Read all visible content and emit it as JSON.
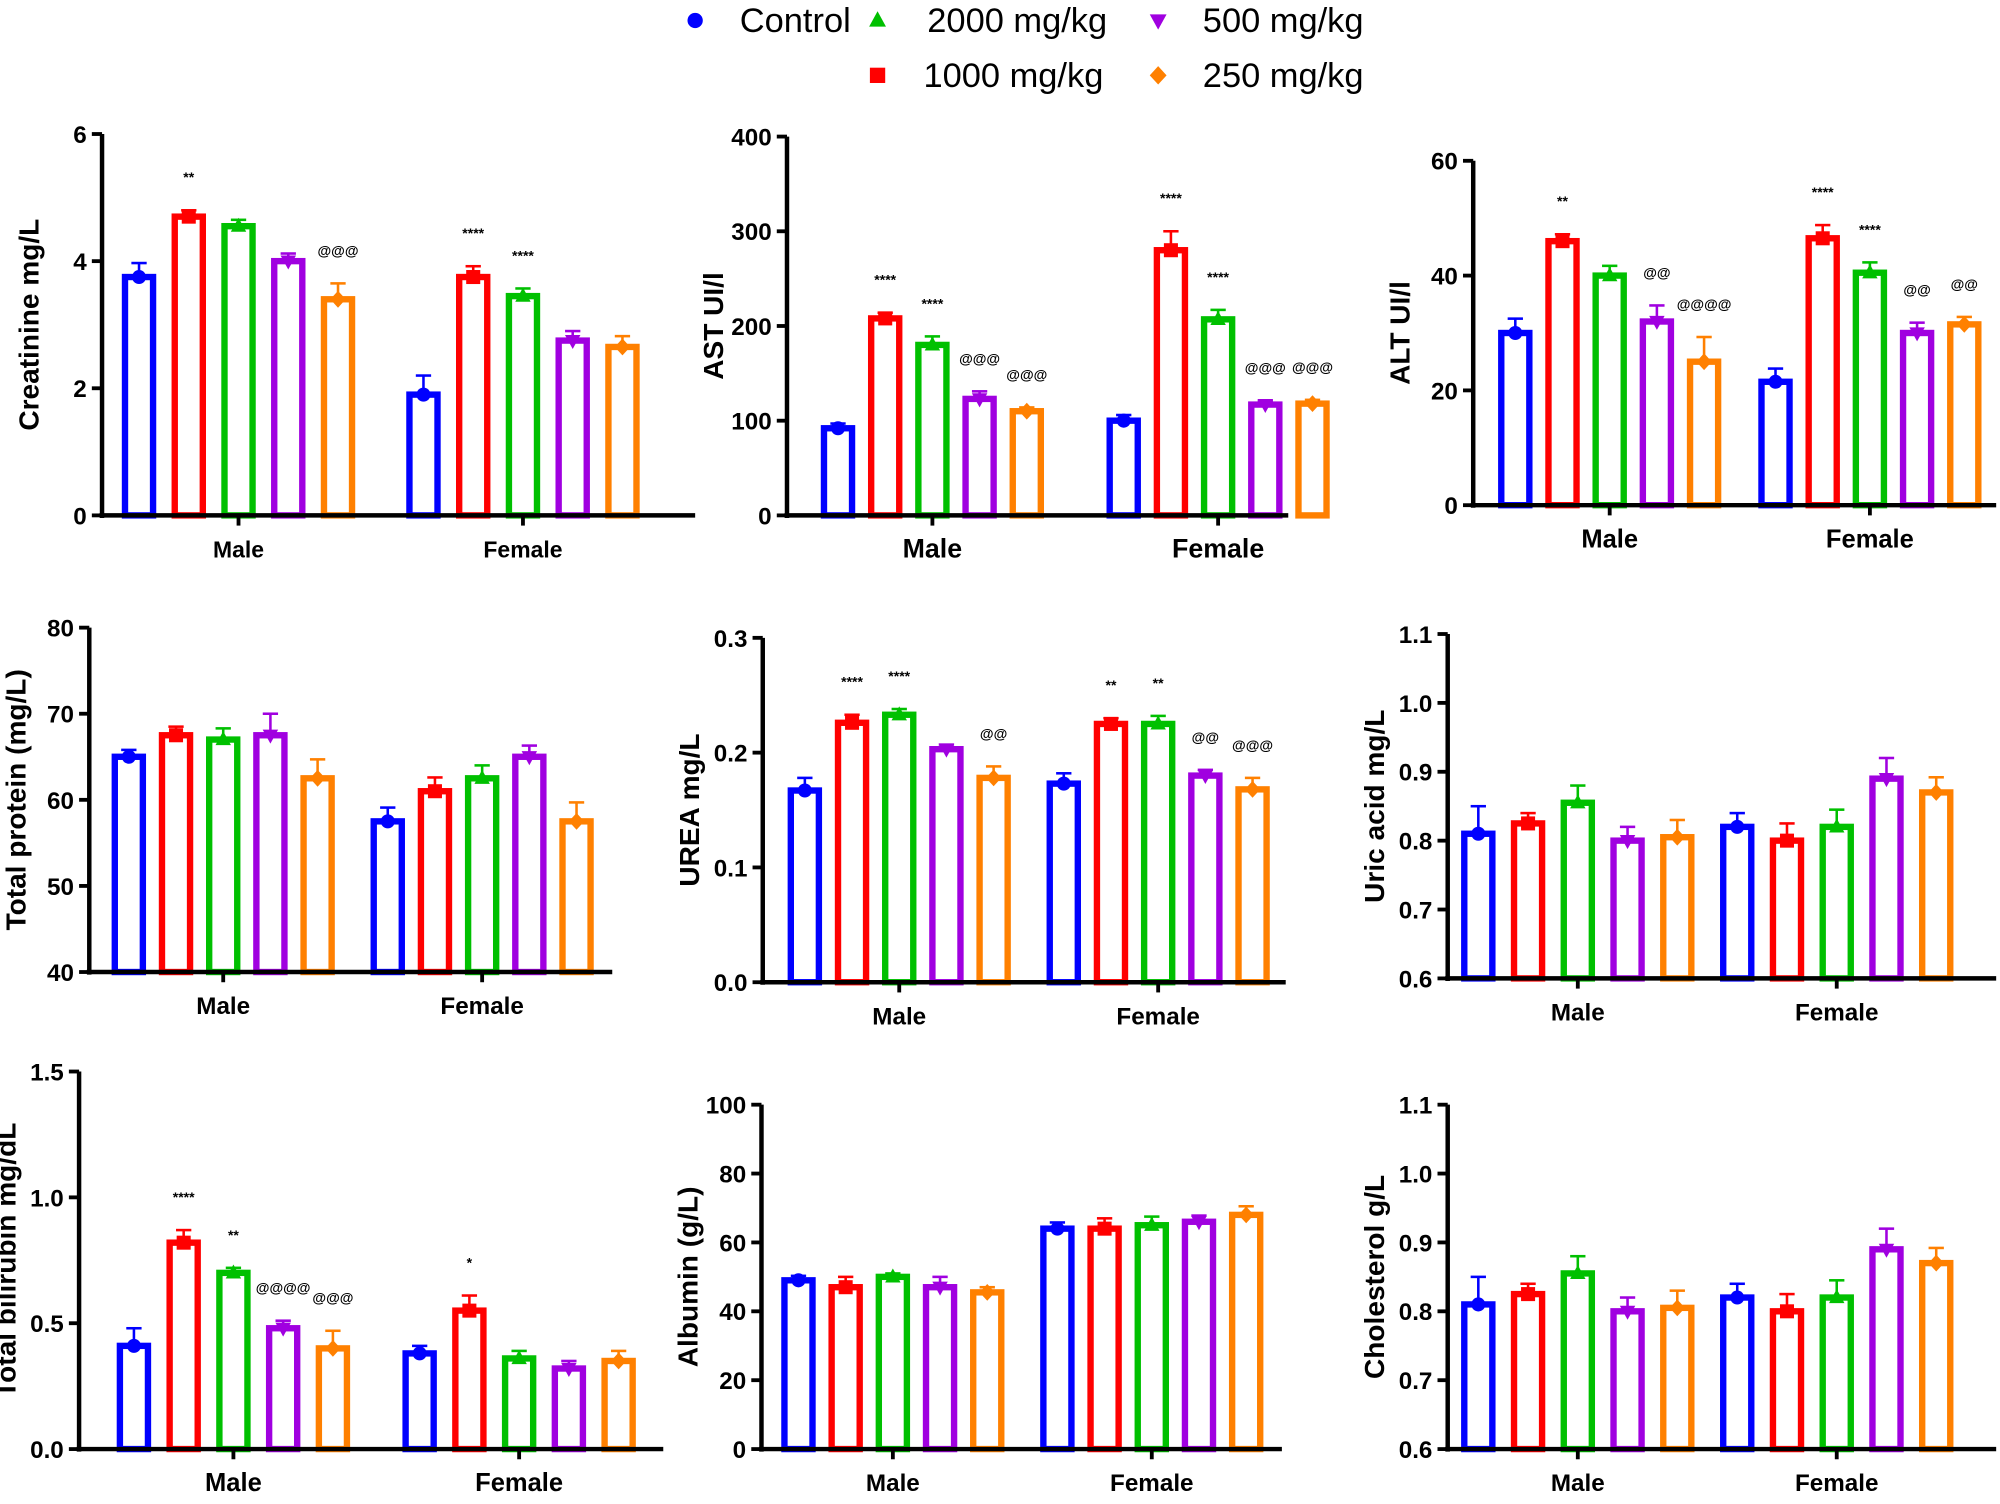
{
  "legend": [
    {
      "name": "Control",
      "color": "#0000ff",
      "marker": "circle"
    },
    {
      "name": "1000 mg/kg",
      "color": "#ff0000",
      "marker": "square"
    },
    {
      "name": "2000 mg/kg",
      "color": "#00c000",
      "marker": "triangle-up"
    },
    {
      "name": "500 mg/kg",
      "color": "#a000e0",
      "marker": "triangle-down"
    },
    {
      "name": "250 mg/kg",
      "color": "#ff8000",
      "marker": "diamond"
    }
  ],
  "chart_data": [
    {
      "type": "bar",
      "ylabel": "Creatinine mg/L",
      "categories": [
        "Male",
        "Female"
      ],
      "ylim": [
        0,
        6
      ],
      "yticks": [
        "0",
        "2",
        "4",
        "6"
      ],
      "series": [
        {
          "name": "Control",
          "values": [
            3.75,
            1.9
          ],
          "sem": [
            0.22,
            0.3
          ]
        },
        {
          "name": "1000 mg/kg",
          "values": [
            4.7,
            3.75
          ],
          "sem": [
            0.1,
            0.17
          ]
        },
        {
          "name": "2000 mg/kg",
          "values": [
            4.55,
            3.45
          ],
          "sem": [
            0.1,
            0.12
          ]
        },
        {
          "name": "500 mg/kg",
          "values": [
            4.0,
            2.75
          ],
          "sem": [
            0.12,
            0.15
          ]
        },
        {
          "name": "250 mg/kg",
          "values": [
            3.4,
            2.65
          ],
          "sem": [
            0.25,
            0.17
          ]
        }
      ],
      "annotations": [
        [
          "",
          "**",
          "",
          "",
          "@@@"
        ],
        [
          "",
          "****",
          "****",
          "",
          ""
        ]
      ]
    },
    {
      "type": "bar",
      "ylabel": "AST UI/l",
      "categories": [
        "Male",
        "Female"
      ],
      "ylim": [
        0,
        400
      ],
      "yticks": [
        "0",
        "100",
        "200",
        "300",
        "400"
      ],
      "series": [
        {
          "name": "Control",
          "values": [
            92,
            100
          ],
          "sem": [
            5,
            6
          ]
        },
        {
          "name": "1000 mg/kg",
          "values": [
            208,
            280
          ],
          "sem": [
            6,
            20
          ]
        },
        {
          "name": "2000 mg/kg",
          "values": [
            180,
            207
          ],
          "sem": [
            9,
            10
          ]
        },
        {
          "name": "500 mg/kg",
          "values": [
            123,
            117
          ],
          "sem": [
            8,
            4
          ]
        },
        {
          "name": "250 mg/kg",
          "values": [
            110,
            118
          ],
          "sem": [
            4,
            4
          ]
        }
      ],
      "annotations": [
        [
          "",
          "****",
          "****",
          "@@@",
          "@@@"
        ],
        [
          "",
          "****",
          "****",
          "@@@",
          "@@@"
        ]
      ]
    },
    {
      "type": "bar",
      "ylabel": "ALT UI/l",
      "categories": [
        "Male",
        "Female"
      ],
      "ylim": [
        0,
        60
      ],
      "yticks": [
        "0",
        "20",
        "40",
        "60"
      ],
      "series": [
        {
          "name": "Control",
          "values": [
            30,
            21.5
          ],
          "sem": [
            2.5,
            2.3
          ]
        },
        {
          "name": "1000 mg/kg",
          "values": [
            46,
            46.5
          ],
          "sem": [
            1.2,
            2.3
          ]
        },
        {
          "name": "2000 mg/kg",
          "values": [
            40,
            40.5
          ],
          "sem": [
            1.7,
            1.8
          ]
        },
        {
          "name": "500 mg/kg",
          "values": [
            32,
            30
          ],
          "sem": [
            2.8,
            1.8
          ]
        },
        {
          "name": "250 mg/kg",
          "values": [
            25,
            31.5
          ],
          "sem": [
            4.3,
            1.3
          ]
        }
      ],
      "annotations": [
        [
          "",
          "**",
          "",
          "@@",
          "@@@@"
        ],
        [
          "",
          "****",
          "****",
          "@@",
          "@@"
        ]
      ]
    },
    {
      "type": "bar",
      "ylabel": "Total protein (mg/L)",
      "categories": [
        "Male",
        "Female"
      ],
      "ylim": [
        40,
        80
      ],
      "yticks": [
        "40",
        "50",
        "60",
        "70",
        "80"
      ],
      "series": [
        {
          "name": "Control",
          "values": [
            65,
            57.5
          ],
          "sem": [
            0.8,
            1.6
          ]
        },
        {
          "name": "1000 mg/kg",
          "values": [
            67.5,
            61
          ],
          "sem": [
            1,
            1.6
          ]
        },
        {
          "name": "2000 mg/kg",
          "values": [
            67,
            62.5
          ],
          "sem": [
            1.3,
            1.5
          ]
        },
        {
          "name": "500 mg/kg",
          "values": [
            67.5,
            65
          ],
          "sem": [
            2.5,
            1.3
          ]
        },
        {
          "name": "250 mg/kg",
          "values": [
            62.5,
            57.5
          ],
          "sem": [
            2.2,
            2.2
          ]
        }
      ],
      "annotations": [
        [
          "",
          "",
          "",
          "",
          ""
        ],
        [
          "",
          "",
          "",
          "",
          ""
        ]
      ]
    },
    {
      "type": "bar",
      "ylabel": "UREA mg/L",
      "categories": [
        "Male",
        "Female"
      ],
      "ylim": [
        0,
        0.3
      ],
      "yticks": [
        "0.0",
        "0.1",
        "0.2",
        "0.3"
      ],
      "series": [
        {
          "name": "Control",
          "values": [
            0.167,
            0.173
          ],
          "sem": [
            0.011,
            0.009
          ]
        },
        {
          "name": "1000 mg/kg",
          "values": [
            0.226,
            0.225
          ],
          "sem": [
            0.007,
            0.005
          ]
        },
        {
          "name": "2000 mg/kg",
          "values": [
            0.233,
            0.225
          ],
          "sem": [
            0.005,
            0.007
          ]
        },
        {
          "name": "500 mg/kg",
          "values": [
            0.203,
            0.18
          ],
          "sem": [
            0.004,
            0.005
          ]
        },
        {
          "name": "250 mg/kg",
          "values": [
            0.178,
            0.168
          ],
          "sem": [
            0.01,
            0.01
          ]
        }
      ],
      "annotations": [
        [
          "",
          "****",
          "****",
          "",
          "@@"
        ],
        [
          "",
          "**",
          "**",
          "@@",
          "@@@"
        ]
      ]
    },
    {
      "type": "bar",
      "ylabel": "Uric acid mg/L",
      "categories": [
        "Male",
        "Female"
      ],
      "ylim": [
        0.6,
        1.1
      ],
      "yticks": [
        "0.6",
        "0.7",
        "0.8",
        "0.9",
        "1.0",
        "1.1"
      ],
      "series": [
        {
          "name": "Control",
          "values": [
            0.81,
            0.82
          ],
          "sem": [
            0.04,
            0.02
          ]
        },
        {
          "name": "1000 mg/kg",
          "values": [
            0.825,
            0.8
          ],
          "sem": [
            0.015,
            0.025
          ]
        },
        {
          "name": "2000 mg/kg",
          "values": [
            0.855,
            0.82
          ],
          "sem": [
            0.025,
            0.025
          ]
        },
        {
          "name": "500 mg/kg",
          "values": [
            0.8,
            0.89
          ],
          "sem": [
            0.02,
            0.03
          ]
        },
        {
          "name": "250 mg/kg",
          "values": [
            0.805,
            0.87
          ],
          "sem": [
            0.025,
            0.022
          ]
        }
      ],
      "annotations": [
        [
          "",
          "",
          "",
          "",
          ""
        ],
        [
          "",
          "",
          "",
          "",
          ""
        ]
      ]
    },
    {
      "type": "bar",
      "ylabel": "Total bilirubin mg/dL",
      "categories": [
        "Male",
        "Female"
      ],
      "ylim": [
        0,
        1.5
      ],
      "yticks": [
        "0.0",
        "0.5",
        "1.0",
        "1.5"
      ],
      "series": [
        {
          "name": "Control",
          "values": [
            0.41,
            0.38
          ],
          "sem": [
            0.07,
            0.03
          ]
        },
        {
          "name": "1000 mg/kg",
          "values": [
            0.82,
            0.55
          ],
          "sem": [
            0.05,
            0.06
          ]
        },
        {
          "name": "2000 mg/kg",
          "values": [
            0.7,
            0.36
          ],
          "sem": [
            0.02,
            0.03
          ]
        },
        {
          "name": "500 mg/kg",
          "values": [
            0.48,
            0.32
          ],
          "sem": [
            0.03,
            0.03
          ]
        },
        {
          "name": "250 mg/kg",
          "values": [
            0.4,
            0.35
          ],
          "sem": [
            0.07,
            0.04
          ]
        }
      ],
      "annotations": [
        [
          "",
          "****",
          "**",
          "@@@@",
          "@@@"
        ],
        [
          "",
          "*",
          "",
          "",
          ""
        ]
      ]
    },
    {
      "type": "bar",
      "ylabel": "Albumin (g/L)",
      "categories": [
        "Male",
        "Female"
      ],
      "ylim": [
        0,
        100
      ],
      "yticks": [
        "0",
        "20",
        "40",
        "60",
        "80",
        "100"
      ],
      "series": [
        {
          "name": "Control",
          "values": [
            49,
            64
          ],
          "sem": [
            1.3,
            1.8
          ]
        },
        {
          "name": "1000 mg/kg",
          "values": [
            47,
            64
          ],
          "sem": [
            3,
            3
          ]
        },
        {
          "name": "2000 mg/kg",
          "values": [
            50,
            65
          ],
          "sem": [
            1,
            2.5
          ]
        },
        {
          "name": "500 mg/kg",
          "values": [
            47,
            66
          ],
          "sem": [
            3,
            1.8
          ]
        },
        {
          "name": "250 mg/kg",
          "values": [
            45.5,
            68
          ],
          "sem": [
            1.5,
            2.5
          ]
        }
      ],
      "annotations": [
        [
          "",
          "",
          "",
          "",
          ""
        ],
        [
          "",
          "",
          "",
          "",
          ""
        ]
      ]
    },
    {
      "type": "bar",
      "ylabel": "Cholesterol g/L",
      "categories": [
        "Male",
        "Female"
      ],
      "ylim": [
        0.6,
        1.1
      ],
      "yticks": [
        "0.6",
        "0.7",
        "0.8",
        "0.9",
        "1.0",
        "1.1"
      ],
      "series": [
        {
          "name": "Control",
          "values": [
            0.81,
            0.82
          ],
          "sem": [
            0.04,
            0.02
          ]
        },
        {
          "name": "1000 mg/kg",
          "values": [
            0.825,
            0.8
          ],
          "sem": [
            0.015,
            0.025
          ]
        },
        {
          "name": "2000 mg/kg",
          "values": [
            0.855,
            0.82
          ],
          "sem": [
            0.025,
            0.025
          ]
        },
        {
          "name": "500 mg/kg",
          "values": [
            0.8,
            0.89
          ],
          "sem": [
            0.02,
            0.03
          ]
        },
        {
          "name": "250 mg/kg",
          "values": [
            0.805,
            0.87
          ],
          "sem": [
            0.025,
            0.022
          ]
        }
      ],
      "annotations": [
        [
          "",
          "",
          "",
          "",
          ""
        ],
        [
          "",
          "",
          "",
          "",
          ""
        ]
      ]
    }
  ]
}
